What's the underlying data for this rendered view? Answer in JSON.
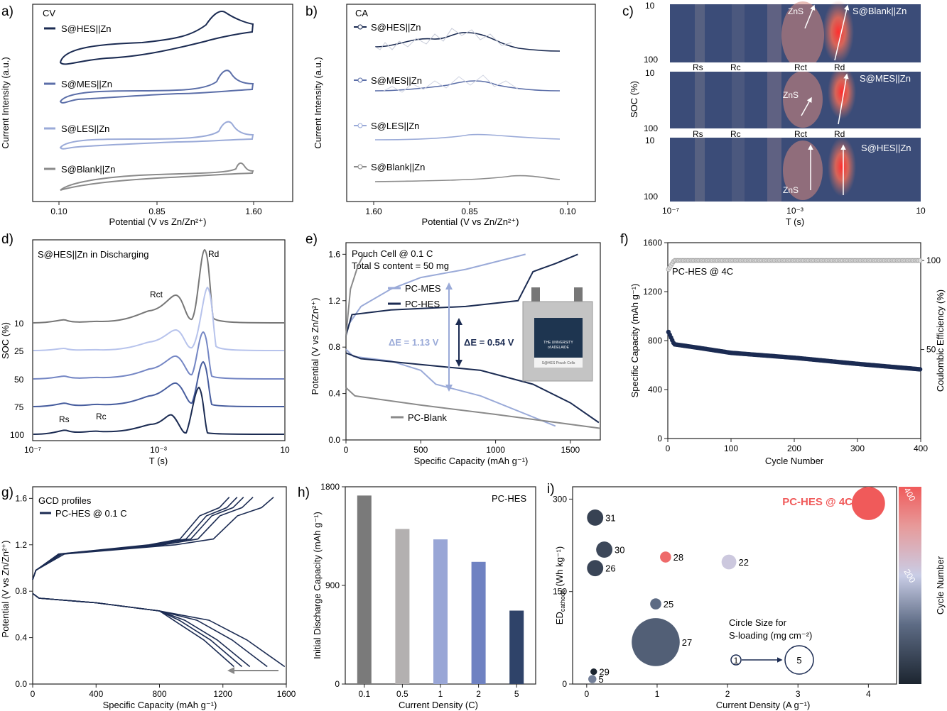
{
  "panels": {
    "a": {
      "letter": "a)",
      "inset_title": "CV",
      "ylabel": "Current Intensity (a.u.)",
      "xlabel": "Potential (V vs Zn/Zn²⁺)",
      "xticks": [
        "0.10",
        "0.85",
        "1.60"
      ],
      "legend": [
        "S@HES||Zn",
        "S@MES||Zn",
        "S@LES||Zn",
        "S@Blank||Zn"
      ]
    },
    "b": {
      "letter": "b)",
      "inset_title": "CA",
      "ylabel": "Current Intensity (a.u.)",
      "xlabel": "Potential (V vs Zn/Zn²⁺)",
      "xticks": [
        "1.60",
        "0.85",
        "0.10"
      ],
      "legend": [
        "S@HES||Zn",
        "S@MES||Zn",
        "S@LES||Zn",
        "S@Blank||Zn"
      ]
    },
    "c": {
      "letter": "c)",
      "ylabel": "SOC (%)",
      "xlabel": "T (s)",
      "yticks": [
        "10",
        "100"
      ],
      "xticks": [
        "10⁻⁷",
        "10⁻³",
        "10"
      ],
      "strip_labels": [
        "S@Blank||Zn",
        "S@MES||Zn",
        "S@HES||Zn"
      ],
      "peak_labels": [
        "Rs",
        "Rc",
        "Rct",
        "Rd"
      ],
      "arrow_label": "ZnS"
    },
    "d": {
      "letter": "d)",
      "inset_title": "S@HES||Zn in Discharging",
      "ylabel": "SOC (%)",
      "xlabel": "T (s)",
      "yticks": [
        "10",
        "25",
        "50",
        "75",
        "100"
      ],
      "xticks": [
        "10⁻⁷",
        "10⁻³",
        "10"
      ],
      "peak_labels": [
        "Rs",
        "Rc",
        "Rct",
        "Rd"
      ]
    },
    "e": {
      "letter": "e)",
      "note1": "Pouch Cell @ 0.1 C",
      "note2": "Total S content = 50 mg",
      "ylabel": "Potential (V vs Zn/Zn²⁺)",
      "xlabel": "Specific Capacity (mAh g⁻¹)",
      "xticks": [
        "0",
        "500",
        "1000",
        "1500"
      ],
      "yticks": [
        "0.0",
        "0.4",
        "0.8",
        "1.2",
        "1.6"
      ],
      "legend": [
        "PC-MES",
        "PC-HES",
        "PC-Blank"
      ],
      "delta_mes": "ΔE = 1.13 V",
      "delta_hes": "ΔE = 0.54 V",
      "photo_text": [
        "THE UNIVERSITY",
        "of ADELAIDE",
        "S@HES Pouch Cells"
      ]
    },
    "f": {
      "letter": "f)",
      "label": "PC-HES @ 4C",
      "ylabel_left": "Specific Capacity (mAh g⁻¹)",
      "ylabel_right": "Coulombic Efficiency (%)",
      "xlabel": "Cycle Number",
      "xticks": [
        "0",
        "100",
        "200",
        "300",
        "400"
      ],
      "yticks_left": [
        "0",
        "400",
        "800",
        "1200",
        "1600"
      ],
      "yticks_right": [
        "50",
        "100"
      ]
    },
    "g": {
      "letter": "g)",
      "inset_title": "GCD profiles",
      "legend": "PC-HES @ 0.1 C",
      "ylabel": "Potential (V vs Zn/Zn²⁺)",
      "xlabel": "Specific Capacity (mAh g⁻¹)",
      "xticks": [
        "0",
        "400",
        "800",
        "1200",
        "1600"
      ],
      "yticks": [
        "0.0",
        "0.4",
        "0.8",
        "1.2",
        "1.6"
      ]
    },
    "h": {
      "letter": "h)",
      "label": "PC-HES",
      "ylabel": "Initial Discharge Capacity (mAh g⁻¹)",
      "xlabel": "Current Density (C)",
      "yticks": [
        "0",
        "900",
        "1800"
      ]
    },
    "i": {
      "letter": "i)",
      "highlight": "PC-HES @ 4C",
      "ylabel": "ED",
      "ylabel_sub": "cathode",
      "ylabel_unit": " (Wh kg⁻¹)",
      "xlabel": "Current Density (A g⁻¹)",
      "xticks": [
        "0",
        "1",
        "2",
        "3",
        "4"
      ],
      "yticks": [
        "0",
        "150",
        "300"
      ],
      "size_note1": "Circle Size for",
      "size_note2": "S-loading (mg cm⁻²)",
      "size_small": "1",
      "size_big": "5",
      "colorbar_label": "Cycle Number",
      "colorbar_ticks": [
        "200",
        "400"
      ]
    }
  },
  "colors": {
    "hes": "#1b2b52",
    "mes": "#5b6ea8",
    "les": "#9aaad8",
    "blank": "#8a8a8a",
    "c_bg": "#3b4c78",
    "heat": "#e8443e",
    "highlight": "#f05a5a"
  },
  "chart_data": [
    {
      "panel": "a",
      "type": "line",
      "series": [
        {
          "name": "S@HES||Zn"
        },
        {
          "name": "S@MES||Zn"
        },
        {
          "name": "S@LES||Zn"
        },
        {
          "name": "S@Blank||Zn"
        }
      ],
      "x_range": [
        0.1,
        1.6
      ]
    },
    {
      "panel": "b",
      "type": "line",
      "series": [
        {
          "name": "S@HES||Zn"
        },
        {
          "name": "S@MES||Zn"
        },
        {
          "name": "S@LES||Zn"
        },
        {
          "name": "S@Blank||Zn"
        }
      ],
      "x_range": [
        1.6,
        0.1
      ]
    },
    {
      "panel": "c",
      "type": "heatmap",
      "x_scale": "log",
      "x_range": [
        "1e-7",
        "10"
      ],
      "y_range": [
        10,
        100
      ]
    },
    {
      "panel": "d",
      "type": "line",
      "x_scale": "log",
      "series_soc": [
        10,
        25,
        50,
        75,
        100
      ]
    },
    {
      "panel": "e",
      "type": "line",
      "xlim": [
        0,
        1700
      ],
      "ylim": [
        0,
        1.7
      ],
      "series": [
        {
          "name": "PC-MES",
          "charge": [
            [
              0,
              0.9
            ],
            [
              20,
              1.0
            ],
            [
              100,
              1.15
            ],
            [
              300,
              1.3
            ],
            [
              500,
              1.4
            ],
            [
              800,
              1.47
            ],
            [
              1200,
              1.6
            ]
          ],
          "discharge": [
            [
              0,
              0.78
            ],
            [
              50,
              0.72
            ],
            [
              300,
              0.68
            ],
            [
              500,
              0.6
            ],
            [
              600,
              0.48
            ],
            [
              900,
              0.38
            ],
            [
              1400,
              0.12
            ]
          ]
        },
        {
          "name": "PC-HES",
          "charge": [
            [
              0,
              0.9
            ],
            [
              40,
              1.08
            ],
            [
              300,
              1.12
            ],
            [
              800,
              1.15
            ],
            [
              1150,
              1.2
            ],
            [
              1250,
              1.45
            ],
            [
              1400,
              1.52
            ],
            [
              1550,
              1.6
            ]
          ],
          "discharge": [
            [
              0,
              0.75
            ],
            [
              100,
              0.7
            ],
            [
              500,
              0.65
            ],
            [
              900,
              0.6
            ],
            [
              1250,
              0.48
            ],
            [
              1500,
              0.32
            ],
            [
              1690,
              0.15
            ]
          ]
        },
        {
          "name": "PC-Blank",
          "charge": [
            [
              0,
              0.9
            ],
            [
              30,
              1.3
            ],
            [
              80,
              1.5
            ],
            [
              120,
              1.6
            ]
          ],
          "discharge": [
            [
              0,
              0.45
            ],
            [
              60,
              0.38
            ],
            [
              500,
              0.3
            ],
            [
              1000,
              0.22
            ],
            [
              1700,
              0.1
            ]
          ]
        }
      ]
    },
    {
      "panel": "f",
      "type": "scatter",
      "xlim": [
        0,
        400
      ],
      "ylim": [
        0,
        1600
      ],
      "y2lim": [
        0,
        110
      ],
      "capacity": [
        [
          1,
          870
        ],
        [
          10,
          770
        ],
        [
          50,
          740
        ],
        [
          100,
          700
        ],
        [
          200,
          660
        ],
        [
          300,
          610
        ],
        [
          400,
          565
        ]
      ],
      "coulombic_efficiency": [
        [
          1,
          95
        ],
        [
          10,
          100
        ],
        [
          200,
          100
        ],
        [
          270,
          100
        ],
        [
          400,
          100
        ]
      ]
    },
    {
      "panel": "g",
      "type": "line",
      "xlim": [
        0,
        1600
      ],
      "ylim": [
        0,
        1.7
      ],
      "cycles": [
        {
          "charge_end": 1240,
          "discharge_end": 1270
        },
        {
          "charge_end": 1290,
          "discharge_end": 1320
        },
        {
          "charge_end": 1330,
          "discharge_end": 1370
        },
        {
          "charge_end": 1390,
          "discharge_end": 1480
        },
        {
          "charge_end": 1520,
          "discharge_end": 1590
        }
      ]
    },
    {
      "panel": "h",
      "type": "bar",
      "categories": [
        "0.1",
        "0.5",
        "1",
        "2",
        "5"
      ],
      "values": [
        1720,
        1415,
        1320,
        1115,
        670
      ],
      "ylim": [
        0,
        1800
      ],
      "colors": [
        "#7a7a7a",
        "#b3b0b0",
        "#99a6d6",
        "#6f82c2",
        "#2f4369"
      ]
    },
    {
      "panel": "i",
      "type": "scatter",
      "xlim": [
        -0.2,
        4.4
      ],
      "ylim": [
        0,
        320
      ],
      "points": [
        {
          "ref": "31",
          "x": 0.12,
          "y": 270,
          "s": 2.2,
          "c": 50
        },
        {
          "ref": "30",
          "x": 0.25,
          "y": 218,
          "s": 2.2,
          "c": 60
        },
        {
          "ref": "26",
          "x": 0.12,
          "y": 188,
          "s": 2.2,
          "c": 55
        },
        {
          "ref": "28",
          "x": 1.12,
          "y": 206,
          "s": 1.5,
          "c": 380
        },
        {
          "ref": "22",
          "x": 2.02,
          "y": 198,
          "s": 2.0,
          "c": 230
        },
        {
          "ref": "25",
          "x": 0.98,
          "y": 130,
          "s": 1.5,
          "c": 120
        },
        {
          "ref": "27",
          "x": 0.98,
          "y": 68,
          "s": 6.5,
          "c": 100
        },
        {
          "ref": "29",
          "x": 0.1,
          "y": 20,
          "s": 0.9,
          "c": 0
        },
        {
          "ref": "5",
          "x": 0.08,
          "y": 8,
          "s": 1.1,
          "c": 140
        },
        {
          "ref": "PC-HES @ 4C",
          "x": 4.0,
          "y": 293,
          "s": 4.5,
          "c": 400
        }
      ]
    }
  ]
}
